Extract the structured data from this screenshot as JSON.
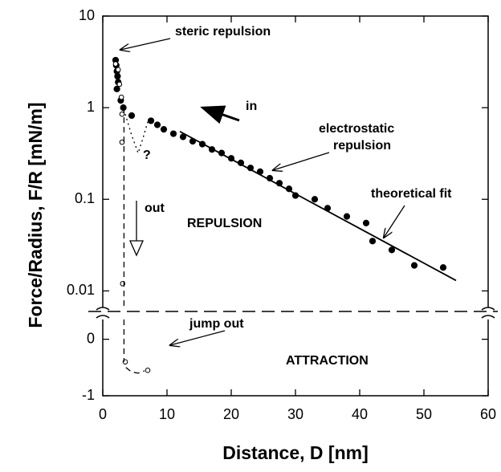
{
  "chart_data": [
    {
      "type": "scatter",
      "ylabel": "Force/Radius, F/R [mN/m]",
      "log_y": true,
      "color": "#000000",
      "xlim": [
        0,
        60
      ],
      "ylim": [
        0.0066,
        10
      ],
      "yticks": [
        10,
        1,
        0.1,
        0.01
      ],
      "annotations": [
        "steric repulsion",
        "in",
        "electrostatic",
        "repulsion",
        "theoretical fit",
        "out",
        "REPULSION",
        "?"
      ],
      "series": [
        {
          "style": "filled-circle",
          "x": [
            2.0,
            2.1,
            2.2,
            2.3,
            2.4,
            2.2,
            2.8,
            3.2,
            4.5,
            7.5,
            8.5,
            9.5,
            11,
            12.5,
            14,
            15.5,
            17,
            18.5,
            20,
            21.5,
            23,
            24.5,
            26,
            27.5,
            29,
            30,
            33,
            35,
            38,
            41,
            42,
            45,
            48.5,
            53
          ],
          "values": [
            3.3,
            2.9,
            2.5,
            2.2,
            1.9,
            1.6,
            1.2,
            1.0,
            0.82,
            0.72,
            0.65,
            0.58,
            0.52,
            0.48,
            0.43,
            0.4,
            0.35,
            0.32,
            0.28,
            0.25,
            0.22,
            0.2,
            0.17,
            0.15,
            0.13,
            0.11,
            0.1,
            0.08,
            0.065,
            0.055,
            0.035,
            0.028,
            0.019,
            0.018
          ]
        },
        {
          "style": "open-circle",
          "x": [
            2.0,
            2.4,
            2.6,
            2.9,
            3.0,
            3.0,
            3.1
          ],
          "values": [
            3.0,
            2.6,
            1.8,
            1.3,
            0.85,
            0.42,
            0.012
          ]
        },
        {
          "style": "line",
          "x": [
            12,
            55
          ],
          "values": [
            0.55,
            0.013
          ]
        },
        {
          "style": "dashed",
          "x": [
            3.3,
            3.3
          ],
          "values": [
            1.0,
            0.0066
          ]
        },
        {
          "style": "dotted",
          "x": [
            3.5,
            4.5,
            5.5,
            6.2,
            7
          ],
          "values": [
            0.85,
            0.5,
            0.32,
            0.45,
            0.7
          ]
        }
      ]
    },
    {
      "type": "scatter",
      "xlabel": "Distance, D [nm]",
      "log_y": false,
      "color": "#000000",
      "xlim": [
        0,
        60
      ],
      "ylim": [
        -1,
        0.35
      ],
      "xticks": [
        0,
        10,
        20,
        30,
        40,
        50,
        60
      ],
      "yticks": [
        0,
        -1
      ],
      "annotations": [
        "jump out",
        "ATTRACTION"
      ],
      "series": [
        {
          "style": "open-circle",
          "x": [
            3.5,
            7
          ],
          "values": [
            -0.4,
            -0.55
          ]
        },
        {
          "style": "dashed",
          "x": [
            3.3,
            3.3
          ],
          "values": [
            0.35,
            -0.4
          ]
        },
        {
          "style": "dashed",
          "x": [
            3.6,
            4.5,
            5.5,
            6.5
          ],
          "values": [
            -0.5,
            -0.58,
            -0.6,
            -0.56
          ]
        }
      ]
    }
  ]
}
